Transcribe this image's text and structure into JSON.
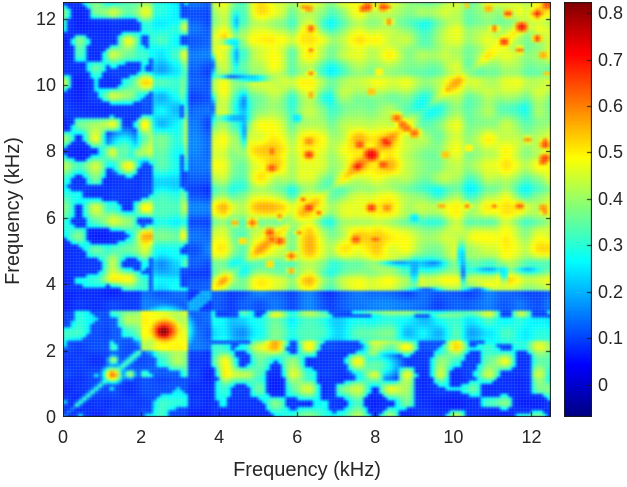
{
  "chart_data": {
    "type": "heatmap",
    "title": "",
    "xlabel": "Frequency (kHz)",
    "ylabel": "Frequency (kHz)",
    "xlim": [
      0,
      12.5
    ],
    "ylim": [
      0,
      12.5
    ],
    "x_ticks": [
      0,
      2,
      4,
      6,
      8,
      10,
      12
    ],
    "y_ticks": [
      0,
      2,
      4,
      6,
      8,
      10,
      12
    ],
    "symmetric": true,
    "colormap": "jet",
    "colorbar": {
      "position": "right",
      "tick_values": [
        0,
        0.1,
        0.2,
        0.3,
        0.4,
        0.5,
        0.6,
        0.7,
        0.8
      ],
      "tick_labels": [
        "0",
        "0.1",
        "0.2",
        "0.3",
        "0.4",
        "0.5",
        "0.6",
        "0.7",
        "0.8"
      ],
      "clim": [
        -0.07,
        0.824
      ]
    },
    "resolution_khz": 0.25,
    "band_profile": [
      0.1,
      0.1,
      0.12,
      0.13,
      0.32,
      0.36,
      0.3,
      0.36,
      0.7,
      0.8,
      0.82,
      0.8,
      0.66,
      0.1,
      0.12,
      0.45,
      0.52,
      0.3,
      0.26,
      0.46,
      0.5,
      0.53,
      0.47,
      0.3,
      0.5,
      0.53,
      0.4,
      0.27,
      0.41,
      0.5,
      0.53,
      0.47,
      0.51,
      0.5,
      0.43,
      0.37,
      0.31,
      0.27,
      0.31,
      0.43,
      0.47,
      0.3,
      0.37,
      0.47,
      0.43,
      0.47,
      0.43,
      0.33,
      0.43,
      0.47
    ],
    "zones_khz": {
      "low": [
        0,
        1.25
      ],
      "transition": [
        1.25,
        2.05
      ],
      "strong_block": [
        2.05,
        3.18
      ],
      "notch_gap": [
        3.18,
        3.78
      ],
      "high": [
        3.78,
        12.5
      ]
    },
    "diagonal_ridge": {
      "width_khz": 0.2,
      "boost": 0.07
    },
    "hotspots": [
      {
        "x": 2.58,
        "y": 2.58,
        "r": 0.4,
        "v": 0.83
      },
      {
        "x": 2.6,
        "y": 2.6,
        "r": 0.65,
        "v": 0.7
      },
      {
        "x": 1.27,
        "y": 1.27,
        "r": 0.26,
        "v": 0.62
      },
      {
        "x": 1.29,
        "y": 1.72,
        "r": 0.15,
        "v": 0.45
      },
      {
        "x": 4.05,
        "y": 4.05,
        "r": 0.22,
        "v": 0.58
      },
      {
        "x": 5.35,
        "y": 5.35,
        "r": 0.28,
        "v": 0.64
      },
      {
        "x": 5.3,
        "y": 5.55,
        "r": 0.3,
        "v": 0.66
      },
      {
        "x": 4.85,
        "y": 5.85,
        "r": 0.25,
        "v": 0.64
      },
      {
        "x": 4.4,
        "y": 5.85,
        "r": 0.18,
        "v": 0.6
      },
      {
        "x": 4.6,
        "y": 5.3,
        "r": 0.2,
        "v": 0.58
      },
      {
        "x": 5.55,
        "y": 6.05,
        "r": 0.2,
        "v": 0.6
      },
      {
        "x": 6.3,
        "y": 6.3,
        "r": 0.3,
        "v": 0.68
      },
      {
        "x": 6.15,
        "y": 6.55,
        "r": 0.2,
        "v": 0.64
      },
      {
        "x": 7.55,
        "y": 7.55,
        "r": 0.28,
        "v": 0.72
      },
      {
        "x": 7.9,
        "y": 7.9,
        "r": 0.4,
        "v": 0.74
      },
      {
        "x": 8.3,
        "y": 8.25,
        "r": 0.28,
        "v": 0.7
      },
      {
        "x": 7.6,
        "y": 8.2,
        "r": 0.25,
        "v": 0.68
      },
      {
        "x": 8.7,
        "y": 8.8,
        "r": 0.3,
        "v": 0.64
      },
      {
        "x": 5.35,
        "y": 7.5,
        "r": 0.3,
        "v": 0.66
      },
      {
        "x": 5.35,
        "y": 8.0,
        "r": 0.27,
        "v": 0.64
      },
      {
        "x": 6.3,
        "y": 7.9,
        "r": 0.3,
        "v": 0.68
      },
      {
        "x": 6.3,
        "y": 8.3,
        "r": 0.22,
        "v": 0.64
      },
      {
        "x": 6.35,
        "y": 9.7,
        "r": 0.2,
        "v": 0.6
      },
      {
        "x": 6.35,
        "y": 10.35,
        "r": 0.2,
        "v": 0.62
      },
      {
        "x": 6.35,
        "y": 11.05,
        "r": 0.2,
        "v": 0.62
      },
      {
        "x": 6.35,
        "y": 11.7,
        "r": 0.23,
        "v": 0.66
      },
      {
        "x": 6.3,
        "y": 12.3,
        "r": 0.2,
        "v": 0.64
      },
      {
        "x": 7.9,
        "y": 9.8,
        "r": 0.25,
        "v": 0.58
      },
      {
        "x": 8.1,
        "y": 10.4,
        "r": 0.2,
        "v": 0.56
      },
      {
        "x": 8.55,
        "y": 9.0,
        "r": 0.3,
        "v": 0.64
      },
      {
        "x": 7.7,
        "y": 12.3,
        "r": 0.25,
        "v": 0.66
      },
      {
        "x": 8.2,
        "y": 12.35,
        "r": 0.25,
        "v": 0.68
      },
      {
        "x": 8.35,
        "y": 11.9,
        "r": 0.2,
        "v": 0.62
      },
      {
        "x": 12.35,
        "y": 7.8,
        "r": 0.28,
        "v": 0.68
      },
      {
        "x": 12.35,
        "y": 8.3,
        "r": 0.2,
        "v": 0.64
      },
      {
        "x": 12.35,
        "y": 6.2,
        "r": 0.22,
        "v": 0.62
      },
      {
        "x": 12.4,
        "y": 10.35,
        "r": 0.15,
        "v": 0.6
      },
      {
        "x": 11.3,
        "y": 11.3,
        "r": 0.28,
        "v": 0.68
      },
      {
        "x": 11.75,
        "y": 11.75,
        "r": 0.3,
        "v": 0.72
      },
      {
        "x": 12.15,
        "y": 12.15,
        "r": 0.25,
        "v": 0.7
      },
      {
        "x": 12.4,
        "y": 12.4,
        "r": 0.2,
        "v": 0.72
      },
      {
        "x": 11.05,
        "y": 11.7,
        "r": 0.2,
        "v": 0.64
      },
      {
        "x": 11.4,
        "y": 12.15,
        "r": 0.22,
        "v": 0.68
      },
      {
        "x": 10.9,
        "y": 12.3,
        "r": 0.2,
        "v": 0.62
      },
      {
        "x": 9.85,
        "y": 9.85,
        "r": 0.25,
        "v": 0.56
      },
      {
        "x": 1.55,
        "y": 8.0,
        "rx": 0.5,
        "ry": 0.7,
        "v": 0.35
      },
      {
        "x": 7.95,
        "y": 1.95,
        "rx": 0.35,
        "ry": 0.3,
        "v": 0.4
      }
    ],
    "cold_spots": [
      {
        "x": 9.0,
        "y": 4.35,
        "rx": 0.07,
        "ry": 0.35,
        "v": 0.13
      },
      {
        "x": 10.25,
        "y": 4.35,
        "rx": 0.07,
        "ry": 0.35,
        "v": 0.13
      },
      {
        "x": 11.3,
        "y": 4.3,
        "rx": 0.07,
        "ry": 0.25,
        "v": 0.15
      },
      {
        "x": 10.2,
        "y": 4.9,
        "rx": 0.07,
        "ry": 0.35,
        "v": 0.12
      },
      {
        "x": 8.6,
        "y": 4.62,
        "rx": 0.45,
        "ry": 0.07,
        "v": 0.14
      },
      {
        "x": 9.5,
        "y": 4.62,
        "rx": 0.22,
        "ry": 0.07,
        "v": 0.14
      },
      {
        "x": 4.42,
        "y": 10.9,
        "rx": 0.07,
        "ry": 0.4,
        "v": 0.16
      },
      {
        "x": 4.42,
        "y": 11.9,
        "rx": 0.07,
        "ry": 0.3,
        "v": 0.18
      },
      {
        "x": 3.84,
        "y": 9.3,
        "rx": 0.06,
        "ry": 0.35,
        "v": 0.12
      },
      {
        "x": 3.84,
        "y": 10.6,
        "rx": 0.06,
        "ry": 0.3,
        "v": 0.13
      },
      {
        "x": 9.0,
        "y": 6.0,
        "rx": 0.1,
        "ry": 0.1,
        "v": 0.18
      }
    ]
  },
  "styles": {
    "text_color": "#262626",
    "axis_color": "#1a1a1a",
    "background": "#ffffff"
  }
}
